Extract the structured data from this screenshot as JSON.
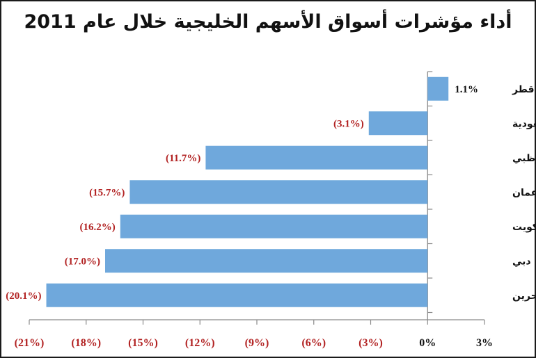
{
  "chart_data": {
    "type": "bar",
    "orientation": "horizontal",
    "title": "أداء مؤشرات أسواق الأسهم الخليجية خلال عام 2011",
    "categories": [
      "قطر",
      "السعودية",
      "أبوظبي",
      "عمان",
      "الكويت",
      "دبي",
      "البحرين"
    ],
    "values": [
      1.1,
      -3.1,
      -11.7,
      -15.7,
      -16.2,
      -17.0,
      -20.1
    ],
    "value_labels": [
      "1.1%",
      "(3.1%)",
      "(11.7%)",
      "(15.7%)",
      "(16.2%)",
      "(17.0%)",
      "(20.1%)"
    ],
    "xlim": [
      -21,
      3
    ],
    "ticks": [
      -21,
      -18,
      -15,
      -12,
      -9,
      -6,
      -3,
      0,
      3
    ],
    "tick_labels": [
      "(21%)",
      "(18%)",
      "(15%)",
      "(12%)",
      "(9%)",
      "(6%)",
      "(3%)",
      "0%",
      "3%"
    ],
    "grid": false,
    "colors": {
      "bar": "#6fa8dc",
      "negative_text": "#b22222",
      "positive_text": "#111111",
      "axis": "#8a8a8a"
    }
  }
}
